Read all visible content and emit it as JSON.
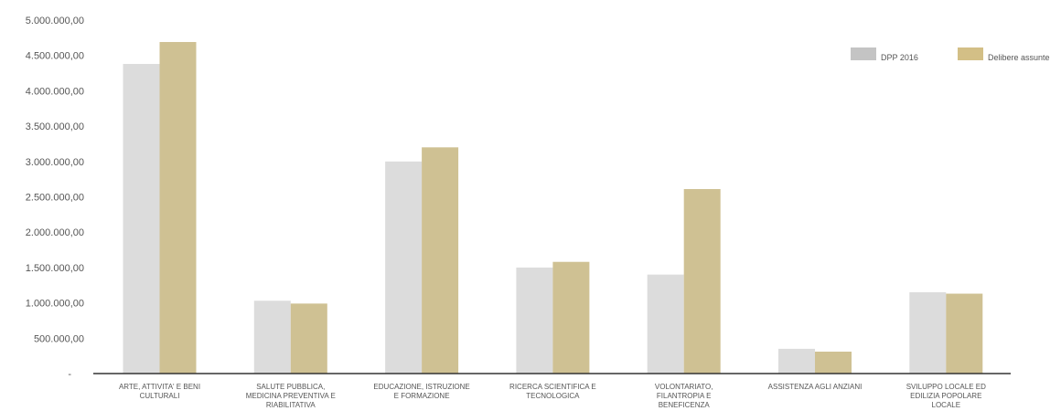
{
  "chart_data": {
    "type": "bar",
    "title": "",
    "xlabel": "",
    "ylabel": "",
    "ylim": [
      0,
      5000000
    ],
    "yticks": [
      "-",
      "500.000,00",
      "1.000.000,00",
      "1.500.000,00",
      "2.000.000,00",
      "2.500.000,00",
      "3.000.000,00",
      "3.500.000,00",
      "4.000.000,00",
      "4.500.000,00",
      "5.000.000,00"
    ],
    "grid": false,
    "legend_position": "top-right",
    "categories": [
      [
        "ARTE, ATTIVITA' E BENI",
        "CULTURALI"
      ],
      [
        "SALUTE PUBBLICA,",
        "MEDICINA PREVENTIVA E",
        "RIABILITATIVA"
      ],
      [
        "EDUCAZIONE, ISTRUZIONE",
        "E FORMAZIONE"
      ],
      [
        "RICERCA SCIENTIFICA E",
        "TECNOLOGICA"
      ],
      [
        "VOLONTARIATO,",
        "FILANTROPIA E",
        "BENEFICENZA"
      ],
      [
        "ASSISTENZA AGLI ANZIANI"
      ],
      [
        "SVILUPPO LOCALE ED",
        "EDILIZIA POPOLARE",
        "LOCALE"
      ]
    ],
    "series": [
      {
        "name": "DPP 2016",
        "color": "#dcdcdc",
        "legend_color": "#c4c4c4",
        "values": [
          4380000,
          1030000,
          3000000,
          1500000,
          1400000,
          350000,
          1150000
        ]
      },
      {
        "name": "Delibere assunte",
        "color": "#cfc193",
        "legend_color": "#d3bf86",
        "values": [
          4690000,
          990000,
          3200000,
          1580000,
          2610000,
          310000,
          1130000
        ]
      }
    ]
  }
}
